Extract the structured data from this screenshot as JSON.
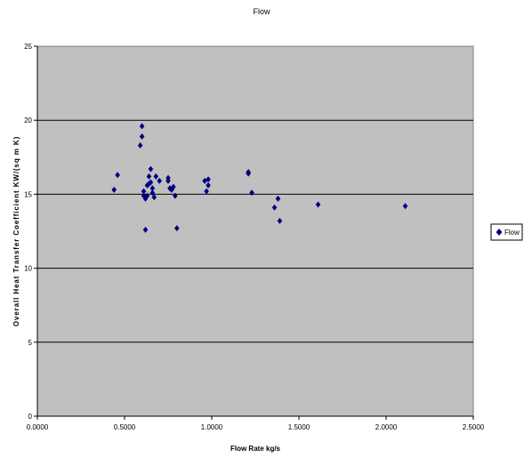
{
  "chart_data": {
    "type": "scatter",
    "title": "Flow",
    "xlabel": "Flow Rate kg/s",
    "ylabel": "Overall Heat Transfer Coefficient KW/(sq m K)",
    "xlim": [
      0,
      2.5
    ],
    "ylim": [
      0,
      25
    ],
    "x_ticks": [
      "0.0000",
      "0.5000",
      "1.0000",
      "1.5000",
      "2.0000",
      "2.5000"
    ],
    "y_ticks": [
      "0",
      "5",
      "10",
      "15",
      "20",
      "25"
    ],
    "grid": "horizontal",
    "legend_position": "right",
    "plot_background": "#c0c0c0",
    "marker_color": "#000080",
    "marker_shape": "diamond",
    "series": [
      {
        "name": "Flow",
        "points": [
          {
            "x": 0.44,
            "y": 15.3
          },
          {
            "x": 0.46,
            "y": 16.3
          },
          {
            "x": 0.59,
            "y": 18.3
          },
          {
            "x": 0.6,
            "y": 18.9
          },
          {
            "x": 0.6,
            "y": 19.6
          },
          {
            "x": 0.61,
            "y": 15.2
          },
          {
            "x": 0.61,
            "y": 14.9
          },
          {
            "x": 0.62,
            "y": 14.7
          },
          {
            "x": 0.62,
            "y": 12.6
          },
          {
            "x": 0.63,
            "y": 15.6
          },
          {
            "x": 0.63,
            "y": 14.9
          },
          {
            "x": 0.64,
            "y": 15.7
          },
          {
            "x": 0.64,
            "y": 16.2
          },
          {
            "x": 0.65,
            "y": 16.7
          },
          {
            "x": 0.65,
            "y": 15.8
          },
          {
            "x": 0.66,
            "y": 15.4
          },
          {
            "x": 0.66,
            "y": 15.1
          },
          {
            "x": 0.67,
            "y": 14.8
          },
          {
            "x": 0.68,
            "y": 16.2
          },
          {
            "x": 0.7,
            "y": 15.9
          },
          {
            "x": 0.75,
            "y": 16.1
          },
          {
            "x": 0.75,
            "y": 15.9
          },
          {
            "x": 0.76,
            "y": 15.4
          },
          {
            "x": 0.77,
            "y": 15.3
          },
          {
            "x": 0.78,
            "y": 15.5
          },
          {
            "x": 0.79,
            "y": 14.9
          },
          {
            "x": 0.8,
            "y": 12.7
          },
          {
            "x": 0.96,
            "y": 15.9
          },
          {
            "x": 0.98,
            "y": 16.0
          },
          {
            "x": 0.98,
            "y": 15.6
          },
          {
            "x": 0.97,
            "y": 15.2
          },
          {
            "x": 1.21,
            "y": 16.4
          },
          {
            "x": 1.21,
            "y": 16.5
          },
          {
            "x": 1.23,
            "y": 15.1
          },
          {
            "x": 1.36,
            "y": 14.1
          },
          {
            "x": 1.38,
            "y": 14.7
          },
          {
            "x": 1.39,
            "y": 13.2
          },
          {
            "x": 1.61,
            "y": 14.3
          },
          {
            "x": 2.11,
            "y": 14.2
          }
        ]
      }
    ]
  }
}
